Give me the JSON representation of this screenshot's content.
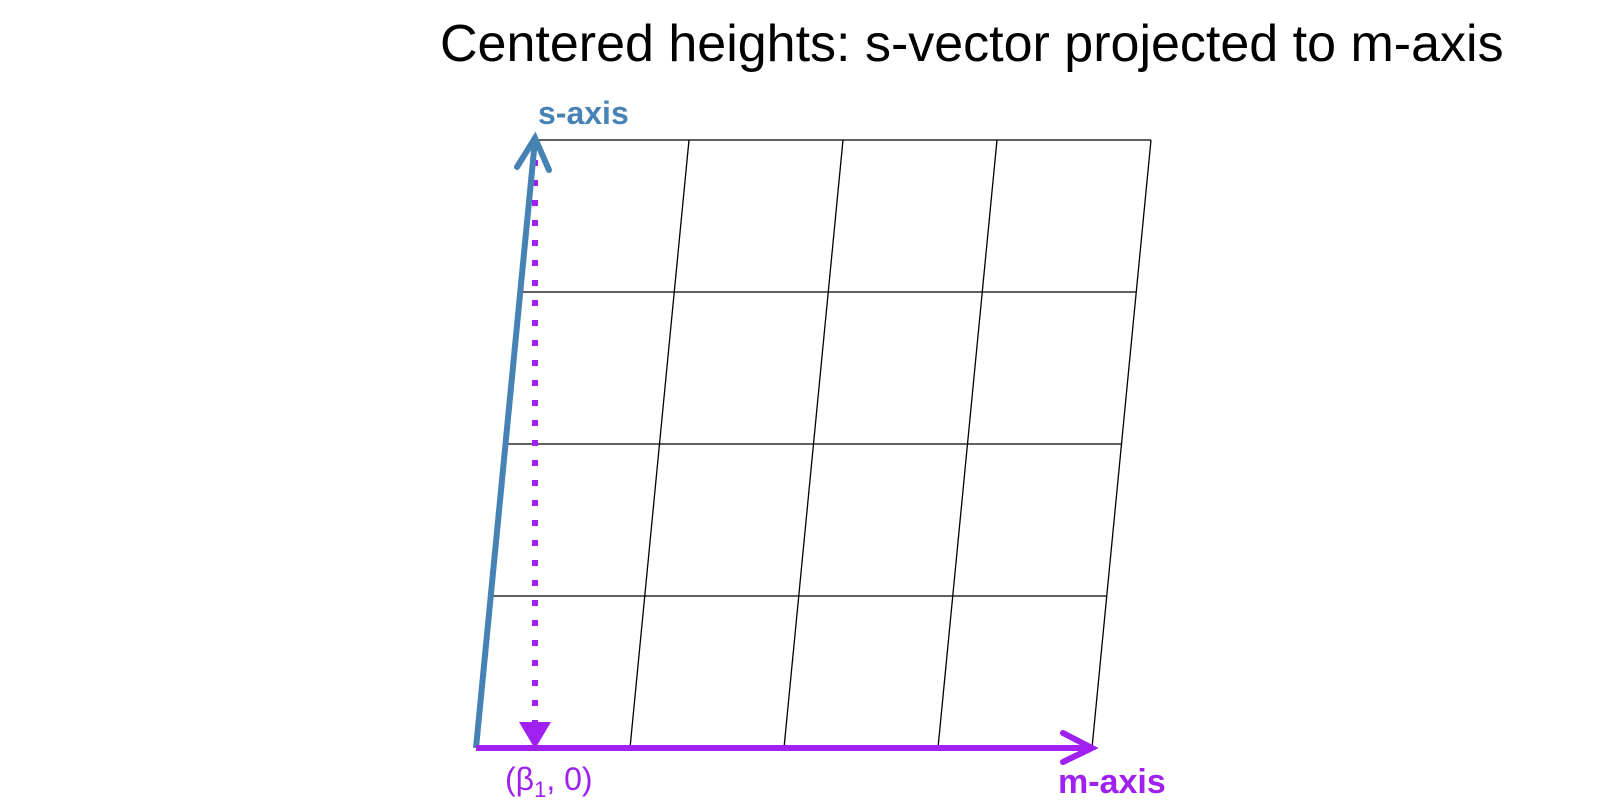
{
  "title": "Centered heights: s-vector projected to m-axis",
  "labels": {
    "s_axis": "s-axis",
    "m_axis": "m-axis",
    "projection_point": {
      "open": "(",
      "symbol": "β",
      "subscript": "1",
      "rest": ", 0)"
    }
  },
  "grid": {
    "rows": 4,
    "cols": 4
  },
  "colors": {
    "s_axis": "#4682B4",
    "m_axis": "#A020F0",
    "grid": "#000000",
    "projection": "#A020F0"
  }
}
